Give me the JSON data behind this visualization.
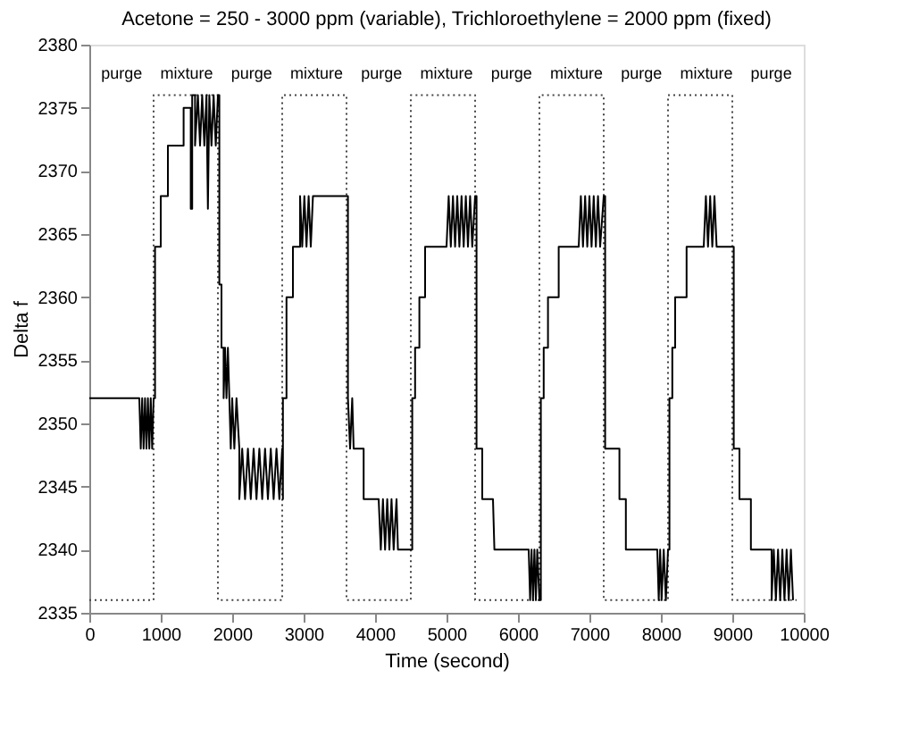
{
  "chart_data": {
    "type": "line",
    "title": "Acetone = 250 - 3000 ppm (variable), Trichloroethylene = 2000 ppm (fixed)",
    "xlabel": "Time (second)",
    "ylabel": "Delta f",
    "xlim": [
      0,
      10000
    ],
    "xticks": [
      0,
      1000,
      2000,
      3000,
      4000,
      5000,
      6000,
      7000,
      8000,
      9000,
      10000
    ],
    "ylim": [
      2335,
      2380
    ],
    "yticks": [
      2335,
      2340,
      2345,
      2350,
      2355,
      2360,
      2365,
      2370,
      2375,
      2380
    ],
    "grid": false,
    "series": [
      {
        "color": "#444444",
        "line_style": "dotted",
        "x": [
          0,
          900,
          900,
          1800,
          1800,
          2700,
          2700,
          3600,
          3600,
          4500,
          4500,
          5400,
          5400,
          6300,
          6300,
          7200,
          7200,
          8100,
          8100,
          9000,
          9000,
          9900
        ],
        "values": [
          2336,
          2336,
          2376,
          2376,
          2336,
          2336,
          2376,
          2376,
          2336,
          2336,
          2376,
          2376,
          2336,
          2336,
          2376,
          2376,
          2336,
          2336,
          2376,
          2376,
          2336,
          2336
        ]
      },
      {
        "color": "#000000",
        "line_style": "solid",
        "x": [
          0,
          700,
          720,
          740,
          760,
          780,
          800,
          820,
          840,
          860,
          880,
          900,
          920,
          920,
          1000,
          1000,
          1100,
          1100,
          1320,
          1320,
          1420,
          1420,
          1440,
          1440,
          1480,
          1480,
          1520,
          1550,
          1580,
          1610,
          1640,
          1660,
          1680,
          1710,
          1740,
          1770,
          1800,
          1820,
          1820,
          1850,
          1850,
          1880,
          1880,
          1900,
          1920,
          1940,
          1960,
          1980,
          2000,
          2030,
          2060,
          2100,
          2100,
          2140,
          2180,
          2220,
          2260,
          2300,
          2340,
          2380,
          2420,
          2460,
          2500,
          2540,
          2580,
          2620,
          2660,
          2700,
          2710,
          2710,
          2760,
          2760,
          2850,
          2850,
          2950,
          2950,
          2980,
          3010,
          3040,
          3070,
          3100,
          3130,
          3600,
          3620,
          3620,
          3650,
          3680,
          3700,
          3840,
          3840,
          4050,
          4080,
          4110,
          4140,
          4170,
          4200,
          4230,
          4260,
          4300,
          4320,
          4500,
          4520,
          4520,
          4560,
          4560,
          4620,
          4620,
          4700,
          4700,
          5000,
          5030,
          5060,
          5090,
          5120,
          5150,
          5180,
          5210,
          5240,
          5270,
          5300,
          5330,
          5360,
          5400,
          5420,
          5420,
          5500,
          5500,
          5650,
          5670,
          6150,
          6170,
          6190,
          6210,
          6230,
          6250,
          6270,
          6300,
          6320,
          6320,
          6360,
          6360,
          6420,
          6420,
          6570,
          6570,
          6850,
          6880,
          6910,
          6940,
          6970,
          7000,
          7030,
          7060,
          7090,
          7120,
          7150,
          7200,
          7220,
          7220,
          7420,
          7420,
          7510,
          7510,
          7950,
          7970,
          7990,
          8010,
          8040,
          8070,
          8100,
          8120,
          8120,
          8160,
          8160,
          8200,
          8200,
          8360,
          8360,
          8600,
          8630,
          8660,
          8690,
          8720,
          8750,
          8780,
          9000,
          9020,
          9020,
          9100,
          9100,
          9260,
          9260,
          9550,
          9550,
          9580,
          9610,
          9640,
          9670,
          9700,
          9730,
          9760,
          9790,
          9820,
          9850
        ],
        "values": [
          2352,
          2352,
          2348,
          2352,
          2348,
          2352,
          2348,
          2352,
          2348,
          2352,
          2348,
          2352,
          2352,
          2364,
          2364,
          2368,
          2368,
          2372,
          2372,
          2375,
          2375,
          2367,
          2367,
          2376,
          2376,
          2372,
          2376,
          2372,
          2376,
          2372,
          2376,
          2367,
          2376,
          2372,
          2376,
          2372,
          2376,
          2376,
          2361,
          2361,
          2356,
          2356,
          2352,
          2356,
          2352,
          2356,
          2352,
          2348,
          2352,
          2348,
          2352,
          2348,
          2344,
          2348,
          2344,
          2348,
          2344,
          2348,
          2344,
          2348,
          2344,
          2348,
          2344,
          2348,
          2344,
          2348,
          2344,
          2348,
          2344,
          2352,
          2352,
          2360,
          2360,
          2364,
          2364,
          2368,
          2364,
          2368,
          2364,
          2368,
          2364,
          2368,
          2368,
          2368,
          2352,
          2348,
          2352,
          2348,
          2348,
          2344,
          2344,
          2340,
          2344,
          2340,
          2344,
          2340,
          2344,
          2340,
          2344,
          2340,
          2340,
          2340,
          2352,
          2352,
          2356,
          2356,
          2360,
          2360,
          2364,
          2364,
          2368,
          2364,
          2368,
          2364,
          2368,
          2364,
          2368,
          2364,
          2368,
          2364,
          2368,
          2364,
          2368,
          2368,
          2348,
          2348,
          2344,
          2344,
          2340,
          2340,
          2336,
          2340,
          2336,
          2340,
          2336,
          2340,
          2336,
          2336,
          2352,
          2352,
          2356,
          2356,
          2360,
          2360,
          2364,
          2364,
          2368,
          2364,
          2368,
          2364,
          2368,
          2364,
          2368,
          2364,
          2368,
          2364,
          2368,
          2368,
          2348,
          2348,
          2344,
          2344,
          2340,
          2340,
          2336,
          2340,
          2336,
          2340,
          2336,
          2340,
          2340,
          2352,
          2352,
          2356,
          2356,
          2360,
          2360,
          2364,
          2364,
          2368,
          2364,
          2368,
          2364,
          2368,
          2364,
          2364,
          2364,
          2348,
          2348,
          2344,
          2344,
          2340,
          2340,
          2336,
          2340,
          2336,
          2340,
          2336,
          2340,
          2336,
          2340,
          2336,
          2340,
          2336
        ]
      }
    ],
    "annotations": [
      "purge",
      "mixture",
      "purge",
      "mixture",
      "purge",
      "mixture",
      "purge",
      "mixture",
      "purge",
      "mixture",
      "purge"
    ]
  }
}
